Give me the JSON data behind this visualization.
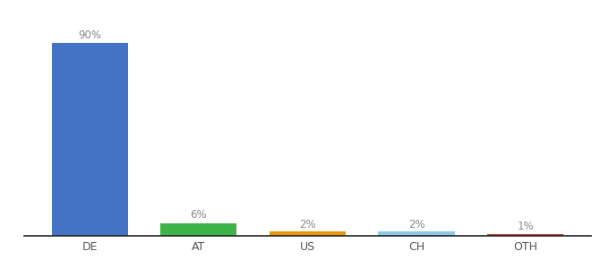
{
  "categories": [
    "DE",
    "AT",
    "US",
    "CH",
    "OTH"
  ],
  "values": [
    90,
    6,
    2,
    2,
    1
  ],
  "bar_colors": [
    "#4472c4",
    "#3db34a",
    "#e8960e",
    "#8dc8e8",
    "#b84c3a"
  ],
  "labels": [
    "90%",
    "6%",
    "2%",
    "2%",
    "1%"
  ],
  "ylim": [
    0,
    100
  ],
  "background_color": "#ffffff",
  "label_fontsize": 8.5,
  "tick_fontsize": 9,
  "bar_width": 0.7,
  "label_color": "#888888",
  "tick_color": "#555555",
  "figsize": [
    6.8,
    3.0
  ],
  "dpi": 100
}
